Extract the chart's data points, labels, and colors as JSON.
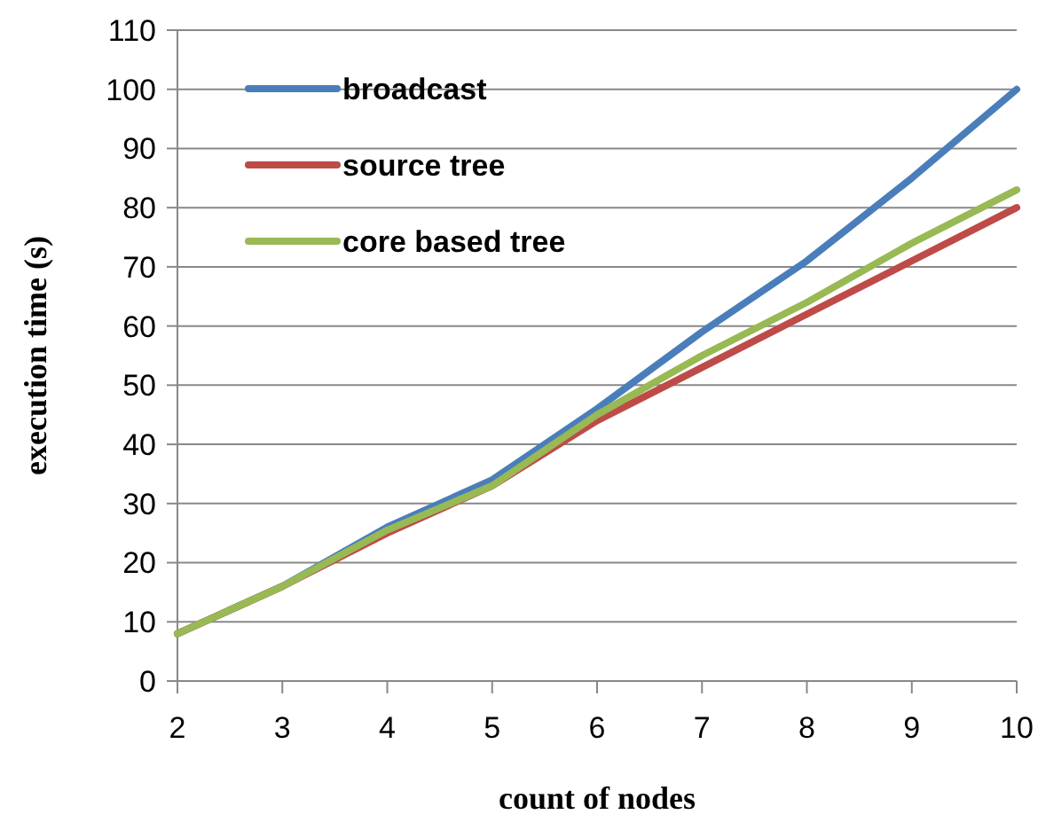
{
  "chart_data": {
    "type": "line",
    "xlabel": "count of nodes",
    "ylabel": "execution time (s)",
    "x": [
      2,
      3,
      4,
      5,
      6,
      7,
      8,
      9,
      10
    ],
    "series": [
      {
        "name": "broadcast",
        "color": "#4a7ebb",
        "values": [
          8,
          16,
          26,
          34,
          46,
          59,
          71,
          85,
          100
        ]
      },
      {
        "name": "source tree",
        "color": "#be4b48",
        "values": [
          8,
          16,
          25,
          33,
          44,
          53,
          62,
          71,
          80
        ]
      },
      {
        "name": "core based tree",
        "color": "#98b954",
        "values": [
          8,
          16,
          25.5,
          33,
          45,
          55,
          64,
          74,
          83
        ]
      }
    ],
    "xlim": [
      2,
      10
    ],
    "xticks": [
      2,
      3,
      4,
      5,
      6,
      7,
      8,
      9,
      10
    ],
    "ylim": [
      0,
      110
    ],
    "yticks": [
      0,
      10,
      20,
      30,
      40,
      50,
      60,
      70,
      80,
      90,
      100,
      110
    ],
    "grid": "y",
    "legend": "top left"
  }
}
